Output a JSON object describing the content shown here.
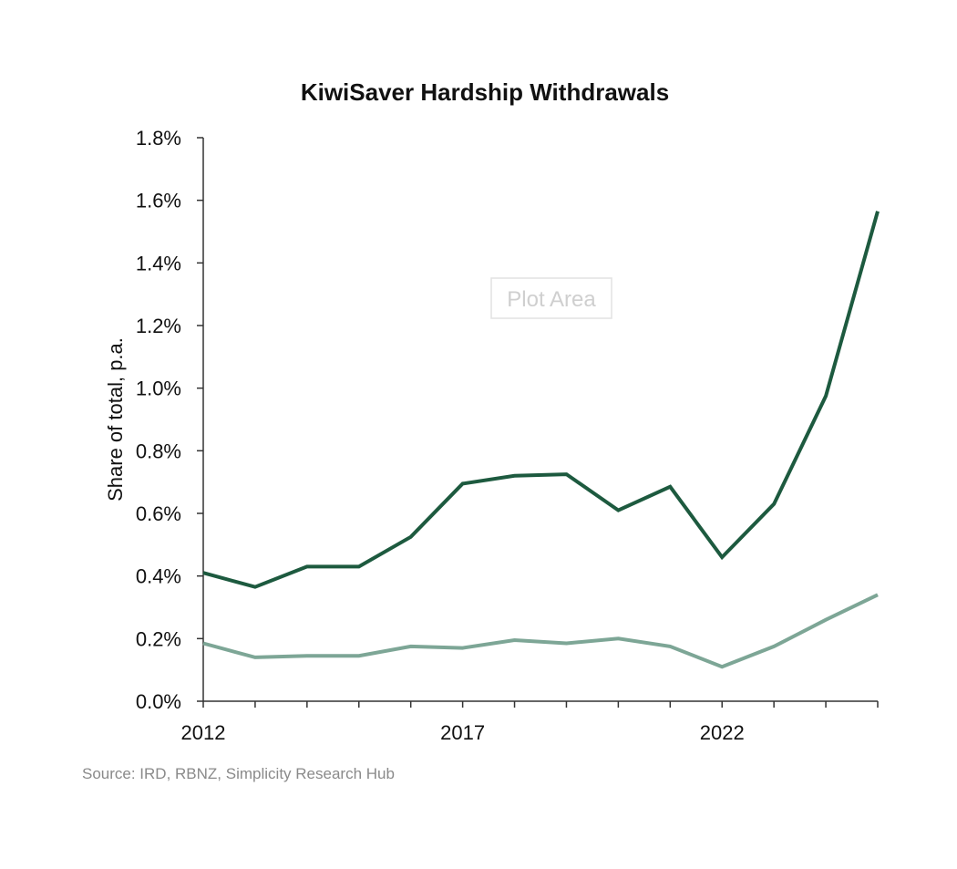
{
  "chart_data": {
    "type": "line",
    "title": "KiwiSaver Hardship Withdrawals",
    "ylabel": "Share of total, p.a.",
    "xlabel": "",
    "x": [
      2012,
      2013,
      2014,
      2015,
      2016,
      2017,
      2018,
      2019,
      2020,
      2021,
      2022,
      2023,
      2024,
      2025
    ],
    "x_ticks": [
      "2012",
      "2017",
      "2022"
    ],
    "ylim": [
      0,
      1.8
    ],
    "y_ticks": [
      "0.0%",
      "0.2%",
      "0.4%",
      "0.6%",
      "0.8%",
      "1.0%",
      "1.2%",
      "1.4%",
      "1.6%",
      "1.8%"
    ],
    "series": [
      {
        "color": "#1d5a3f",
        "values": [
          0.41,
          0.365,
          0.43,
          0.43,
          0.525,
          0.695,
          0.72,
          0.725,
          0.61,
          0.685,
          0.46,
          0.63,
          0.975,
          1.565
        ]
      },
      {
        "color": "#7da696",
        "values": [
          0.185,
          0.14,
          0.145,
          0.145,
          0.175,
          0.17,
          0.195,
          0.185,
          0.2,
          0.175,
          0.11,
          0.175,
          0.26,
          0.34
        ]
      }
    ],
    "grid": false,
    "legend": "none"
  },
  "annotations": {
    "plot_area_hint": "Plot Area"
  },
  "source": "Source: IRD, RBNZ, Simplicity Research Hub"
}
